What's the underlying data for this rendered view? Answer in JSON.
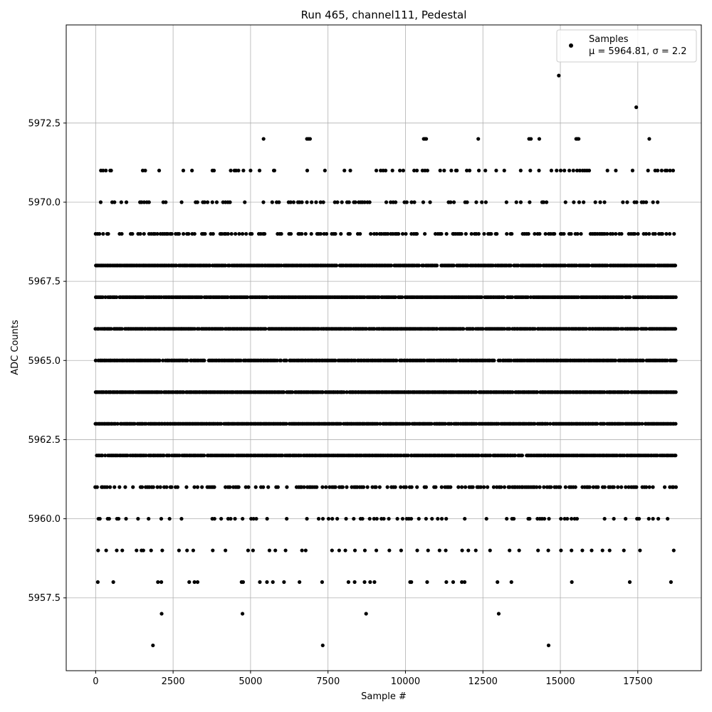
{
  "chart_data": {
    "type": "scatter",
    "title": "Run 465, channel111, Pedestal",
    "xlabel": "Sample #",
    "ylabel": "ADC Counts",
    "xlim": [
      -950,
      19550
    ],
    "ylim": [
      5955.2,
      5975.6
    ],
    "xticks": [
      0,
      2500,
      5000,
      7500,
      10000,
      12500,
      15000,
      17500
    ],
    "xtick_labels": [
      "0",
      "2500",
      "5000",
      "7500",
      "10000",
      "12500",
      "15000",
      "17500"
    ],
    "yticks": [
      5957.5,
      5960.0,
      5962.5,
      5965.0,
      5967.5,
      5970.0,
      5972.5
    ],
    "ytick_labels": [
      "5957.5",
      "5960.0",
      "5962.5",
      "5965.0",
      "5967.5",
      "5970.0",
      "5972.5"
    ],
    "grid": true,
    "legend": {
      "position": "top-right",
      "entries": [
        "Samples",
        "μ = 5964.81, σ = 2.2"
      ]
    },
    "series": [
      {
        "name": "Samples",
        "color": "#000000",
        "marker": "circle",
        "x_range": [
          0,
          18750
        ],
        "dense_levels": [
          5962,
          5963,
          5964,
          5965,
          5966,
          5967,
          5968
        ],
        "medium_levels": [
          5961,
          5969
        ],
        "sparse_levels": [
          5960,
          5970
        ],
        "level_5959_x": [
          80,
          340,
          680,
          860,
          1320,
          1480,
          1540,
          1790,
          2150,
          2690,
          2950,
          3150,
          3780,
          4190,
          4920,
          5080,
          5610,
          5800,
          6130,
          6660,
          6780,
          7630,
          7860,
          8060,
          8370,
          8690,
          9060,
          9480,
          9860,
          10380,
          10730,
          11100,
          11300,
          11830,
          12030,
          12270,
          12730,
          13360,
          13670,
          14280,
          14610,
          15020,
          15360,
          15710,
          16010,
          16360,
          16590,
          17050,
          17570,
          18660
        ],
        "level_5958_x": [
          70,
          570,
          2010,
          2120,
          3020,
          3190,
          3290,
          4710,
          4760,
          5300,
          5530,
          5720,
          6080,
          6580,
          7310,
          8160,
          8360,
          8680,
          8860,
          9000,
          10150,
          10190,
          10700,
          11320,
          11540,
          11820,
          11910,
          12970,
          13420,
          15370,
          17240,
          18570
        ],
        "level_5957_x": [
          2130,
          4740,
          8730,
          13010
        ],
        "level_5956_x": [
          1850,
          7330,
          14620
        ],
        "level_5971_x": [
          170,
          240,
          330,
          470,
          500,
          1520,
          1600,
          2050,
          2830,
          3110,
          3770,
          3820,
          4360,
          4480,
          4530,
          4610,
          4770,
          5000,
          5290,
          5750,
          5770,
          6830,
          7400,
          8030,
          8220,
          9060,
          9200,
          9280,
          9360,
          9580,
          9820,
          9930,
          10280,
          10370,
          10550,
          10630,
          10710,
          11120,
          11250,
          11480,
          11630,
          11660,
          11980,
          12070,
          12370,
          12580,
          12930,
          13190,
          13720,
          14030,
          14310,
          14710,
          14880,
          15010,
          15130,
          15290,
          15420,
          15540,
          15630,
          15720,
          15790,
          15860,
          15930,
          16520,
          16790,
          17330,
          17830,
          18060,
          18140,
          18270,
          18390,
          18440,
          18540,
          18640
        ],
        "level_5972_x": [
          5420,
          6820,
          6870,
          6920,
          10590,
          10630,
          10670,
          12350,
          13990,
          14050,
          14320,
          15510,
          15550,
          15590,
          17870
        ],
        "level_5973_x": [
          17450
        ],
        "level_5974_x": [
          14950
        ]
      }
    ]
  }
}
